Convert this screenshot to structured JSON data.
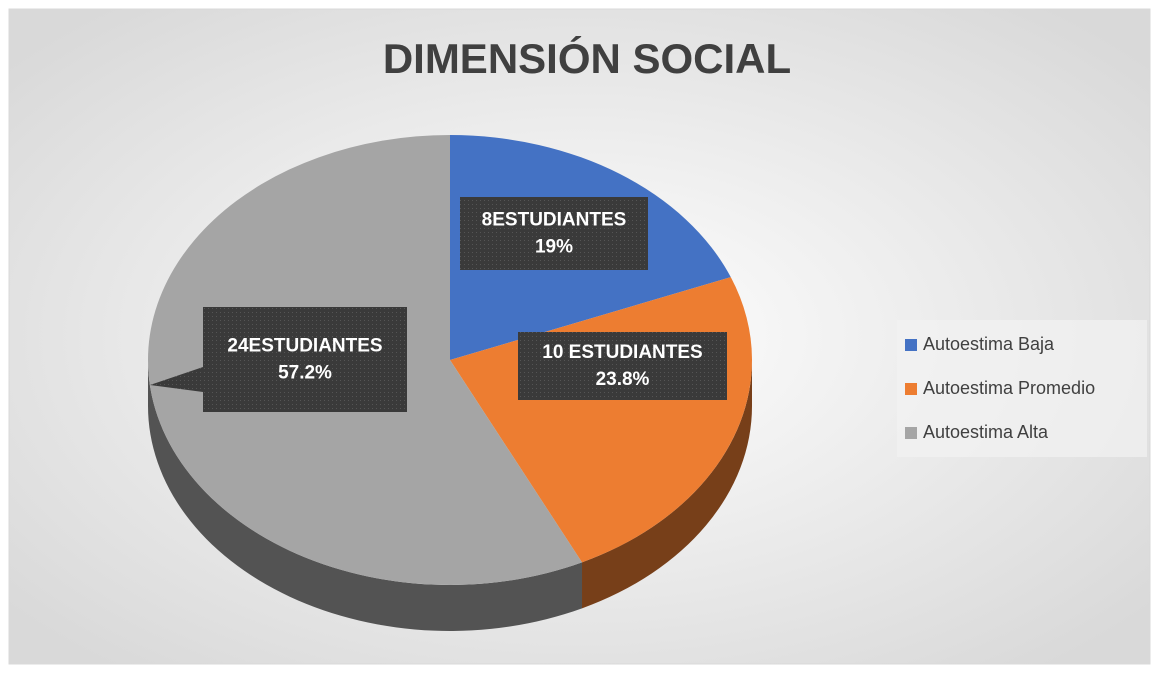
{
  "chart_data": {
    "type": "pie3d",
    "title": "DIMENSIÓN SOCIAL",
    "categories": [
      "Autoestima Baja",
      "Autoestima Promedio",
      "Autoestima Alta"
    ],
    "values": [
      19,
      23.8,
      57.2
    ],
    "value_labels": [
      "19%",
      "23.8%",
      "57.2%"
    ],
    "count_labels": [
      "8ESTUDIANTES",
      "10 ESTUDIANTES",
      "24ESTUDIANTES"
    ],
    "colors": [
      "#4472c4",
      "#ed7d31",
      "#a5a5a5"
    ],
    "legend": "right"
  }
}
